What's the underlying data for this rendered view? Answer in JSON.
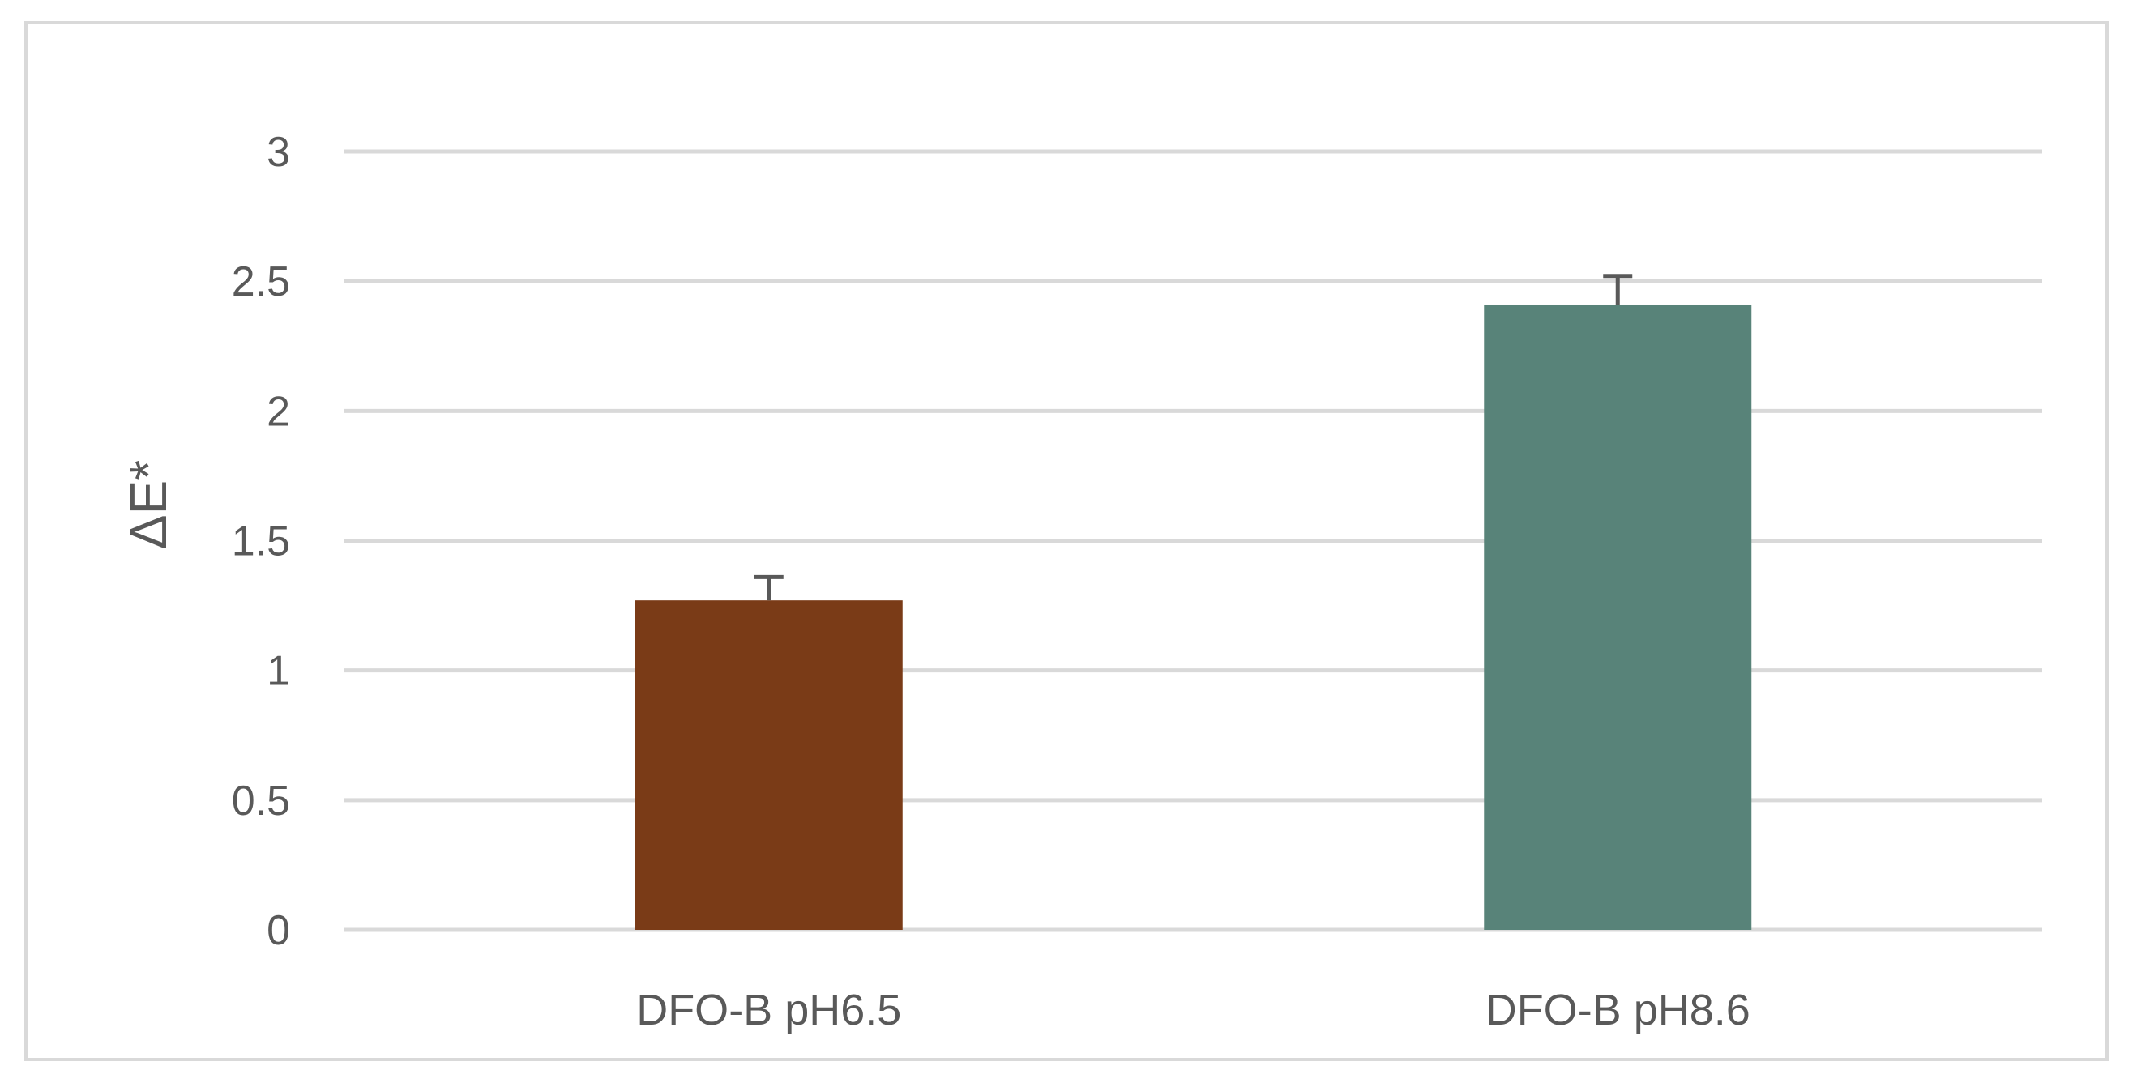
{
  "chart_data": {
    "type": "bar",
    "categories": [
      "DFO-B pH6.5",
      "DFO-B pH8.6"
    ],
    "values": [
      1.27,
      2.41
    ],
    "error": [
      0.09,
      0.11
    ],
    "colors": [
      "#7a3b17",
      "#588379"
    ],
    "title": "",
    "xlabel": "",
    "ylabel": "ΔE*",
    "ylim": [
      0,
      3
    ],
    "yticks": [
      "0",
      "0.5",
      "1",
      "1.5",
      "2",
      "2.5",
      "3"
    ],
    "grid": true,
    "legend": "none"
  }
}
